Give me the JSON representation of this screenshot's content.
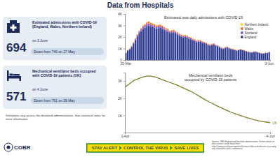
{
  "title": "Data from Hospitals",
  "panels": [
    {
      "value": 694,
      "label": "Estimated admissions with COVID-19 (England, Wales, Northern Ireland)",
      "date": "on 3 June",
      "change": "Down from 740 on 27 May"
    },
    {
      "value": 571,
      "label": "Mechanical ventilator beds occupied with COVID-19 patients (UK)",
      "date": "on 4 June",
      "change": "Down from 751 on 28 May"
    }
  ],
  "note": "Definitions vary across the devolved administrations. See statistical notes for more information.",
  "footer": {
    "logo": "COBR",
    "slogan": [
      "STAY ALERT",
      "CONTROL THE VIRUS",
      "SAVE LIVES"
    ],
    "sources": "Sources: NHS England and devolved administrations. Further details on data sources can be found here: https://www.gov.uk/government/collections/slides-and-datasets-to-accompany-coronavirus-press-conferences"
  },
  "chart_data": [
    {
      "type": "bar",
      "stacked": true,
      "title": "Estimated new daily admissions with COVID-19",
      "categories": [
        "20-Mar",
        null,
        null,
        null,
        null,
        null,
        null,
        null,
        null,
        null,
        null,
        null,
        null,
        null,
        null,
        null,
        null,
        null,
        null,
        null,
        null,
        null,
        null,
        null,
        null,
        null,
        null,
        null,
        null,
        null,
        null,
        null,
        null,
        null,
        null,
        null,
        null,
        null,
        null,
        null,
        null,
        null,
        null,
        null,
        null,
        null,
        null,
        null,
        null,
        null,
        null,
        null,
        null,
        null,
        null,
        null,
        null,
        null,
        null,
        null,
        null,
        null,
        null,
        null,
        null,
        null,
        null,
        null,
        null,
        null,
        null,
        null,
        null,
        null,
        null,
        "3-Jun"
      ],
      "series": [
        {
          "name": "England",
          "color": "#2b3990",
          "values": [
            600,
            800,
            900,
            1100,
            1400,
            1700,
            2000,
            2300,
            2500,
            2700,
            2800,
            2950,
            3000,
            2900,
            2850,
            2800,
            2700,
            2750,
            2800,
            2700,
            2600,
            2500,
            2450,
            2300,
            2350,
            2400,
            2300,
            2200,
            2100,
            2000,
            1950,
            2000,
            1950,
            1850,
            1800,
            1700,
            1650,
            1550,
            1600,
            1600,
            1500,
            1450,
            1400,
            1300,
            1250,
            1300,
            1350,
            1250,
            1200,
            1100,
            1000,
            950,
            1050,
            1100,
            1000,
            950,
            900,
            850,
            800,
            850,
            900,
            850,
            800,
            750,
            700,
            650,
            650,
            700,
            710,
            650,
            600,
            550,
            550,
            600,
            600,
            664
          ]
        },
        {
          "name": "Scotland",
          "color": "#7e57c2",
          "values": [
            30,
            40,
            50,
            60,
            80,
            100,
            120,
            140,
            150,
            160,
            170,
            180,
            190,
            180,
            170,
            170,
            160,
            160,
            150,
            150,
            140,
            140,
            130,
            130,
            120,
            120,
            110,
            110,
            100,
            100,
            95,
            90,
            90,
            85,
            80,
            80,
            75,
            70,
            70,
            65,
            60,
            60,
            55,
            55,
            50,
            50,
            50,
            45,
            45,
            40,
            40,
            40,
            35,
            35,
            35,
            30,
            30,
            30,
            30,
            25,
            25,
            25,
            25,
            20,
            20,
            20,
            20,
            20,
            20,
            18,
            18,
            15,
            15,
            15,
            15,
            15
          ]
        },
        {
          "name": "Wales",
          "color": "#f26b3a",
          "values": [
            20,
            30,
            40,
            50,
            60,
            70,
            80,
            90,
            100,
            110,
            120,
            130,
            140,
            140,
            130,
            130,
            130,
            120,
            120,
            120,
            110,
            110,
            110,
            100,
            100,
            100,
            95,
            95,
            90,
            90,
            85,
            85,
            80,
            80,
            75,
            75,
            70,
            70,
            65,
            65,
            60,
            60,
            55,
            55,
            55,
            50,
            50,
            50,
            45,
            45,
            45,
            40,
            40,
            40,
            40,
            35,
            35,
            35,
            35,
            35,
            30,
            30,
            30,
            30,
            30,
            30,
            25,
            25,
            25,
            25,
            25,
            25,
            25,
            25,
            25,
            25
          ]
        },
        {
          "name": "Northern Ireland",
          "color": "#ffcc33",
          "values": [
            10,
            10,
            15,
            15,
            20,
            25,
            30,
            30,
            35,
            35,
            40,
            40,
            40,
            40,
            40,
            35,
            35,
            35,
            35,
            30,
            30,
            30,
            30,
            30,
            25,
            25,
            25,
            25,
            20,
            20,
            20,
            20,
            20,
            15,
            15,
            15,
            15,
            15,
            15,
            12,
            12,
            12,
            10,
            10,
            10,
            10,
            10,
            10,
            8,
            8,
            8,
            8,
            8,
            8,
            8,
            7,
            7,
            7,
            7,
            7,
            6,
            6,
            6,
            6,
            6,
            6,
            5,
            5,
            5,
            5,
            5,
            5,
            5,
            5,
            5,
            5
          ]
        }
      ],
      "ylim": [
        0,
        4000
      ],
      "yticks": [
        0,
        {
          "value": 1000,
          "label": "1K"
        },
        {
          "value": 2000,
          "label": "2K"
        },
        {
          "value": 3000,
          "label": "3K"
        },
        {
          "value": 4000,
          "label": "4K"
        }
      ],
      "legend": "top right",
      "grid": false
    },
    {
      "type": "line",
      "title": "Mechanical ventilator beds occupied by COVID-19 patients",
      "categories": [
        "2-Apr",
        null,
        null,
        null,
        null,
        null,
        null,
        null,
        null,
        null,
        null,
        null,
        null,
        null,
        null,
        null,
        null,
        null,
        null,
        null,
        null,
        null,
        null,
        null,
        null,
        null,
        null,
        null,
        null,
        null,
        null,
        null,
        null,
        null,
        null,
        null,
        null,
        null,
        null,
        null,
        null,
        null,
        null,
        null,
        null,
        null,
        null,
        null,
        null,
        null,
        null,
        null,
        null,
        null,
        null,
        null,
        null,
        null,
        null,
        null,
        null,
        null,
        null,
        "4-Jun"
      ],
      "series": [
        {
          "name": "UK",
          "color": "#857f2a",
          "values": [
            2650,
            2750,
            2850,
            2950,
            3050,
            3100,
            3150,
            3200,
            3250,
            3280,
            3300,
            3290,
            3270,
            3250,
            3200,
            3150,
            3100,
            3050,
            3000,
            2950,
            2900,
            2850,
            2800,
            2750,
            2680,
            2620,
            2560,
            2500,
            2440,
            2380,
            2300,
            2220,
            2140,
            2060,
            1980,
            1900,
            1830,
            1760,
            1690,
            1620,
            1550,
            1490,
            1430,
            1370,
            1310,
            1250,
            1190,
            1140,
            1090,
            1040,
            990,
            950,
            910,
            870,
            830,
            790,
            751,
            720,
            690,
            660,
            640,
            620,
            600,
            571
          ]
        }
      ],
      "ylim": [
        0,
        3500
      ],
      "yticks": [
        {
          "value": 1000,
          "label": "1K"
        },
        {
          "value": 2000,
          "label": "2K"
        },
        {
          "value": 3000,
          "label": "3K"
        }
      ],
      "grid": false
    }
  ]
}
